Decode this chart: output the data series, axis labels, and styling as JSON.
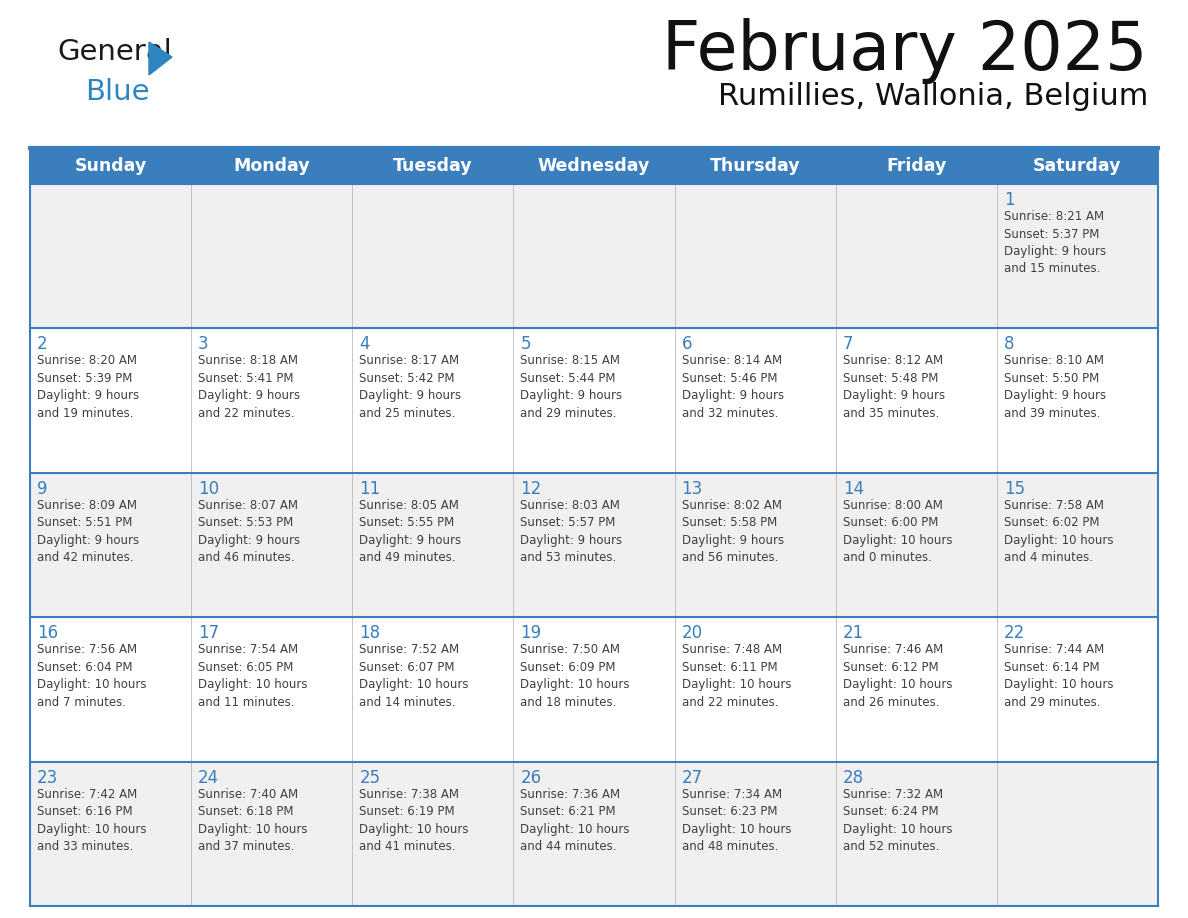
{
  "title": "February 2025",
  "subtitle": "Rumillies, Wallonia, Belgium",
  "header_color": "#3A7EBD",
  "header_text_color": "#FFFFFF",
  "day_names": [
    "Sunday",
    "Monday",
    "Tuesday",
    "Wednesday",
    "Thursday",
    "Friday",
    "Saturday"
  ],
  "bg_color": "#FFFFFF",
  "cell_bg_row0": "#F0F0F0",
  "cell_bg_row1": "#FFFFFF",
  "cell_bg_row2": "#F0F0F0",
  "cell_bg_row3": "#FFFFFF",
  "cell_bg_row4": "#F0F0F0",
  "border_color": "#3A7EBD",
  "separator_color": "#3A7EBD",
  "text_color": "#404040",
  "num_color": "#3A7EBD",
  "logo_black": "#1a1a1a",
  "logo_blue": "#2E86C1",
  "calendar_data": [
    [
      {
        "day": null,
        "info": ""
      },
      {
        "day": null,
        "info": ""
      },
      {
        "day": null,
        "info": ""
      },
      {
        "day": null,
        "info": ""
      },
      {
        "day": null,
        "info": ""
      },
      {
        "day": null,
        "info": ""
      },
      {
        "day": 1,
        "info": "Sunrise: 8:21 AM\nSunset: 5:37 PM\nDaylight: 9 hours\nand 15 minutes."
      }
    ],
    [
      {
        "day": 2,
        "info": "Sunrise: 8:20 AM\nSunset: 5:39 PM\nDaylight: 9 hours\nand 19 minutes."
      },
      {
        "day": 3,
        "info": "Sunrise: 8:18 AM\nSunset: 5:41 PM\nDaylight: 9 hours\nand 22 minutes."
      },
      {
        "day": 4,
        "info": "Sunrise: 8:17 AM\nSunset: 5:42 PM\nDaylight: 9 hours\nand 25 minutes."
      },
      {
        "day": 5,
        "info": "Sunrise: 8:15 AM\nSunset: 5:44 PM\nDaylight: 9 hours\nand 29 minutes."
      },
      {
        "day": 6,
        "info": "Sunrise: 8:14 AM\nSunset: 5:46 PM\nDaylight: 9 hours\nand 32 minutes."
      },
      {
        "day": 7,
        "info": "Sunrise: 8:12 AM\nSunset: 5:48 PM\nDaylight: 9 hours\nand 35 minutes."
      },
      {
        "day": 8,
        "info": "Sunrise: 8:10 AM\nSunset: 5:50 PM\nDaylight: 9 hours\nand 39 minutes."
      }
    ],
    [
      {
        "day": 9,
        "info": "Sunrise: 8:09 AM\nSunset: 5:51 PM\nDaylight: 9 hours\nand 42 minutes."
      },
      {
        "day": 10,
        "info": "Sunrise: 8:07 AM\nSunset: 5:53 PM\nDaylight: 9 hours\nand 46 minutes."
      },
      {
        "day": 11,
        "info": "Sunrise: 8:05 AM\nSunset: 5:55 PM\nDaylight: 9 hours\nand 49 minutes."
      },
      {
        "day": 12,
        "info": "Sunrise: 8:03 AM\nSunset: 5:57 PM\nDaylight: 9 hours\nand 53 minutes."
      },
      {
        "day": 13,
        "info": "Sunrise: 8:02 AM\nSunset: 5:58 PM\nDaylight: 9 hours\nand 56 minutes."
      },
      {
        "day": 14,
        "info": "Sunrise: 8:00 AM\nSunset: 6:00 PM\nDaylight: 10 hours\nand 0 minutes."
      },
      {
        "day": 15,
        "info": "Sunrise: 7:58 AM\nSunset: 6:02 PM\nDaylight: 10 hours\nand 4 minutes."
      }
    ],
    [
      {
        "day": 16,
        "info": "Sunrise: 7:56 AM\nSunset: 6:04 PM\nDaylight: 10 hours\nand 7 minutes."
      },
      {
        "day": 17,
        "info": "Sunrise: 7:54 AM\nSunset: 6:05 PM\nDaylight: 10 hours\nand 11 minutes."
      },
      {
        "day": 18,
        "info": "Sunrise: 7:52 AM\nSunset: 6:07 PM\nDaylight: 10 hours\nand 14 minutes."
      },
      {
        "day": 19,
        "info": "Sunrise: 7:50 AM\nSunset: 6:09 PM\nDaylight: 10 hours\nand 18 minutes."
      },
      {
        "day": 20,
        "info": "Sunrise: 7:48 AM\nSunset: 6:11 PM\nDaylight: 10 hours\nand 22 minutes."
      },
      {
        "day": 21,
        "info": "Sunrise: 7:46 AM\nSunset: 6:12 PM\nDaylight: 10 hours\nand 26 minutes."
      },
      {
        "day": 22,
        "info": "Sunrise: 7:44 AM\nSunset: 6:14 PM\nDaylight: 10 hours\nand 29 minutes."
      }
    ],
    [
      {
        "day": 23,
        "info": "Sunrise: 7:42 AM\nSunset: 6:16 PM\nDaylight: 10 hours\nand 33 minutes."
      },
      {
        "day": 24,
        "info": "Sunrise: 7:40 AM\nSunset: 6:18 PM\nDaylight: 10 hours\nand 37 minutes."
      },
      {
        "day": 25,
        "info": "Sunrise: 7:38 AM\nSunset: 6:19 PM\nDaylight: 10 hours\nand 41 minutes."
      },
      {
        "day": 26,
        "info": "Sunrise: 7:36 AM\nSunset: 6:21 PM\nDaylight: 10 hours\nand 44 minutes."
      },
      {
        "day": 27,
        "info": "Sunrise: 7:34 AM\nSunset: 6:23 PM\nDaylight: 10 hours\nand 48 minutes."
      },
      {
        "day": 28,
        "info": "Sunrise: 7:32 AM\nSunset: 6:24 PM\nDaylight: 10 hours\nand 52 minutes."
      },
      {
        "day": null,
        "info": ""
      }
    ]
  ]
}
